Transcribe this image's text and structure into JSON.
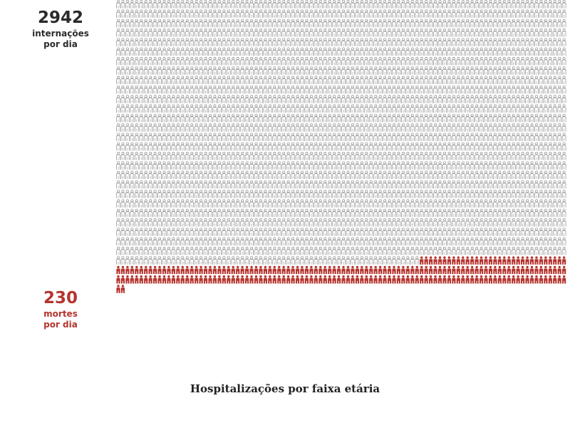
{
  "chart_data": {
    "type": "pictogram",
    "title": "Hospitalizações por faixa etária",
    "series": [
      {
        "name": "internações por dia",
        "value": 2942,
        "number_label": "2942",
        "label_lines": [
          "internações",
          "por dia"
        ],
        "color": "#9a9a9a"
      },
      {
        "name": "mortes por dia",
        "value": 230,
        "number_label": "230",
        "label_lines": [
          "mortes",
          "por dia"
        ],
        "color": "#b5342e"
      }
    ],
    "icons_per_row": 98
  },
  "colors": {
    "hospital_icon": "#9a9a9a",
    "death_icon": "#b5342e",
    "total_text": "#2b2b2b",
    "death_text": "#b5342e"
  },
  "icons": {
    "hospitalization": "person-outline-icon",
    "death": "person-filled-icon"
  }
}
